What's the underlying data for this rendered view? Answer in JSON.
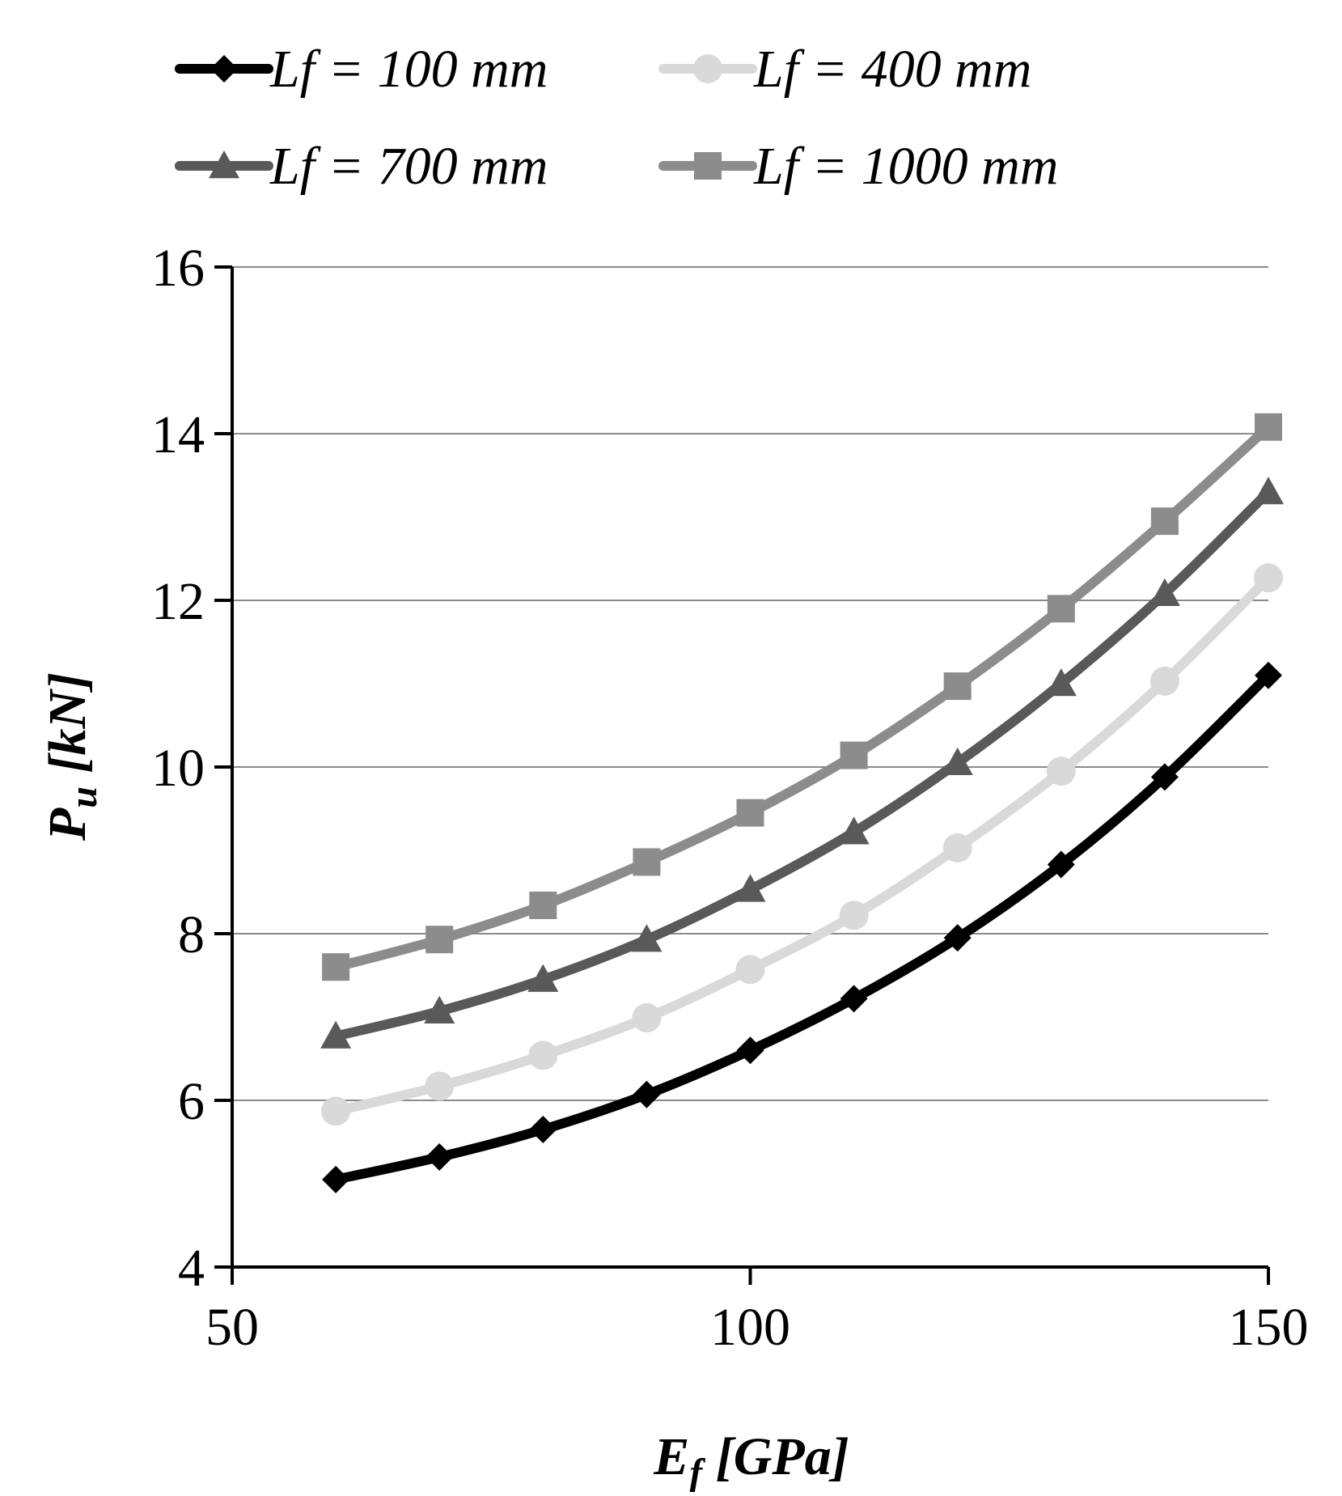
{
  "chart_data": {
    "type": "line",
    "title": "",
    "xlabel": {
      "main": "E",
      "sub": "f",
      "rest": " [GPa]"
    },
    "ylabel": {
      "main": "P",
      "sub": "u",
      "rest": " [kN]"
    },
    "xlim": [
      50,
      150
    ],
    "ylim": [
      4,
      16
    ],
    "xticks": [
      50,
      100,
      150
    ],
    "yticks": [
      4,
      6,
      8,
      10,
      12,
      14,
      16
    ],
    "grid": "horizontal",
    "legend_position": "top",
    "x": [
      60,
      70,
      80,
      90,
      100,
      110,
      120,
      130,
      140,
      150
    ],
    "series": [
      {
        "name": "Lf = 100 mm",
        "marker": "diamond",
        "color": "#000000",
        "values": [
          5.05,
          5.32,
          5.65,
          6.07,
          6.6,
          7.22,
          7.95,
          8.83,
          9.88,
          11.1
        ]
      },
      {
        "name": "Lf = 400 mm",
        "marker": "circle",
        "color": "#d9d9d9",
        "values": [
          5.87,
          6.17,
          6.54,
          6.99,
          7.57,
          8.22,
          9.03,
          9.95,
          11.03,
          12.27
        ]
      },
      {
        "name": "Lf = 700 mm",
        "marker": "triangle",
        "color": "#595959",
        "values": [
          6.77,
          7.07,
          7.45,
          7.93,
          8.53,
          9.22,
          10.05,
          11.0,
          12.08,
          13.3
        ]
      },
      {
        "name": "Lf = 1000 mm",
        "marker": "square",
        "color": "#8c8c8c",
        "values": [
          7.6,
          7.93,
          8.34,
          8.86,
          9.45,
          10.14,
          10.97,
          11.9,
          12.95,
          14.08
        ]
      }
    ]
  }
}
